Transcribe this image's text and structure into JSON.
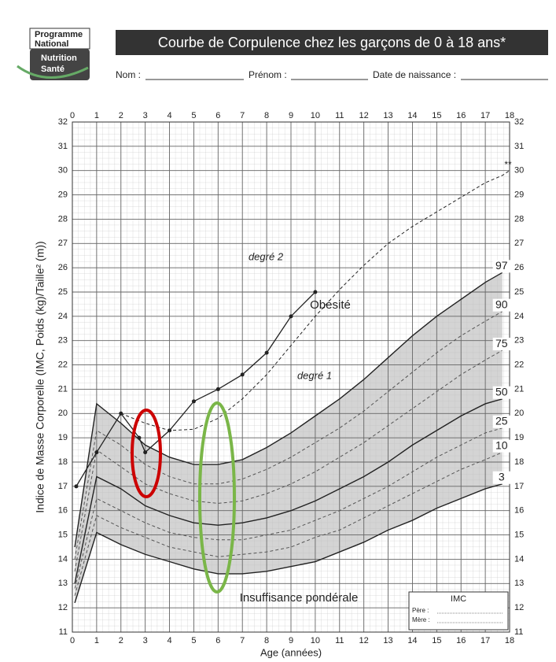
{
  "header": {
    "logo": [
      "Programme",
      "National",
      "Nutrition",
      "Santé"
    ],
    "title": "Courbe de Corpulence chez les garçons de 0 à 18 ans*",
    "fields": [
      "Nom :",
      "Prénom :",
      "Date de naissance :"
    ]
  },
  "chart_data": {
    "type": "line",
    "ylabel": "Indice de Masse Corporelle (IMC, Poids (kg)/Taille² (m))",
    "xlabel": "Age (années)",
    "xlim": [
      0,
      18
    ],
    "ylim": [
      11,
      32
    ],
    "xticks": [
      0,
      1,
      2,
      3,
      4,
      5,
      6,
      7,
      8,
      9,
      10,
      11,
      12,
      13,
      14,
      15,
      16,
      17,
      18
    ],
    "yticks": [
      11,
      12,
      13,
      14,
      15,
      16,
      17,
      18,
      19,
      20,
      21,
      22,
      23,
      24,
      25,
      26,
      27,
      28,
      29,
      30,
      31,
      32
    ],
    "grid": true,
    "x": [
      0.1,
      1,
      2,
      3,
      4,
      5,
      6,
      7,
      8,
      9,
      10,
      11,
      12,
      13,
      14,
      15,
      16,
      17,
      17.7,
      18
    ],
    "series": [
      {
        "name": "97",
        "color": "#222",
        "dash": false,
        "values": [
          14.5,
          20.4,
          19.6,
          18.7,
          18.2,
          17.9,
          17.9,
          18.1,
          18.6,
          19.2,
          19.9,
          20.6,
          21.4,
          22.3,
          23.2,
          24.0,
          24.7,
          25.4,
          25.8,
          null
        ]
      },
      {
        "name": "90",
        "color": "#555",
        "dash": true,
        "values": [
          14,
          19.3,
          18.7,
          17.9,
          17.4,
          17.1,
          17.1,
          17.3,
          17.7,
          18.2,
          18.8,
          19.4,
          20.1,
          20.9,
          21.7,
          22.5,
          23.2,
          23.8,
          24.2,
          null
        ]
      },
      {
        "name": "75",
        "color": "#555",
        "dash": true,
        "values": [
          13.5,
          18.5,
          17.8,
          17.1,
          16.7,
          16.4,
          16.3,
          16.4,
          16.7,
          17.1,
          17.6,
          18.2,
          18.8,
          19.5,
          20.2,
          20.9,
          21.6,
          22.2,
          22.6,
          null
        ]
      },
      {
        "name": "50",
        "color": "#222",
        "dash": false,
        "values": [
          13,
          17.4,
          16.9,
          16.2,
          15.8,
          15.5,
          15.4,
          15.5,
          15.7,
          16.0,
          16.4,
          16.9,
          17.4,
          18.0,
          18.7,
          19.3,
          19.9,
          20.4,
          20.6,
          null
        ]
      },
      {
        "name": "25",
        "color": "#555",
        "dash": true,
        "values": [
          12.8,
          16.5,
          16.0,
          15.5,
          15.1,
          14.9,
          14.8,
          14.8,
          15.0,
          15.2,
          15.6,
          16.0,
          16.5,
          17.0,
          17.6,
          18.2,
          18.7,
          19.2,
          19.4,
          null
        ]
      },
      {
        "name": "10",
        "color": "#555",
        "dash": true,
        "values": [
          12.5,
          15.8,
          15.3,
          14.9,
          14.5,
          14.3,
          14.1,
          14.2,
          14.3,
          14.5,
          14.9,
          15.2,
          15.7,
          16.2,
          16.7,
          17.2,
          17.7,
          18.1,
          18.4,
          null
        ]
      },
      {
        "name": "3",
        "color": "#222",
        "dash": false,
        "values": [
          12.2,
          15.1,
          14.6,
          14.2,
          13.9,
          13.6,
          13.4,
          13.4,
          13.5,
          13.7,
          13.9,
          14.3,
          14.7,
          15.2,
          15.6,
          16.1,
          16.5,
          16.9,
          17.1,
          null
        ]
      },
      {
        "color": "#222",
        "dash": true,
        "values": [
          null,
          null,
          20,
          19.6,
          19.3,
          19.35,
          19.8,
          20.6,
          21.6,
          22.8,
          24.0,
          25.1,
          26.1,
          27.0,
          27.7,
          28.3,
          28.9,
          29.5,
          29.8,
          30
        ]
      }
    ],
    "child": {
      "color": "#222",
      "x": [
        0.16,
        1,
        2,
        2.75,
        3,
        4,
        5,
        6,
        7,
        8,
        9,
        10
      ],
      "values": [
        17,
        18.4,
        20,
        19,
        18.4,
        19.3,
        20.5,
        21,
        21.6,
        22.5,
        24,
        25
      ]
    },
    "band_color": "#d4d4d4",
    "annotations": [
      "degré 2",
      "degré 1",
      "Obésité",
      "Insuffisance pondérale",
      "**"
    ],
    "box": {
      "title": "IMC",
      "rows": [
        "Père :",
        "Mère :"
      ]
    }
  }
}
